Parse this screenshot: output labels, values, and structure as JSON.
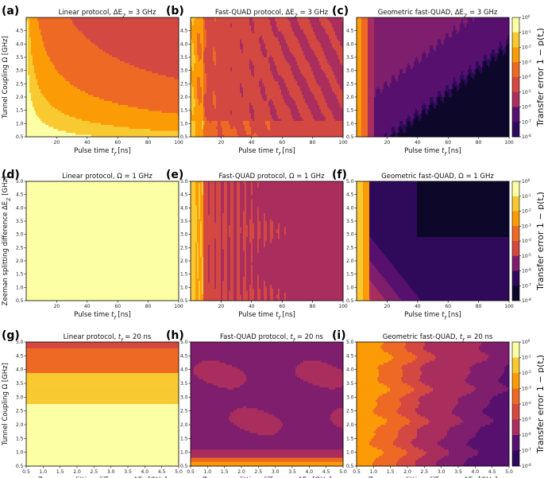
{
  "colors": {
    "levels": [
      "#0d0829",
      "#2f0a5b",
      "#57106e",
      "#7f1e6c",
      "#a92e5e",
      "#d44842",
      "#ee6a24",
      "#fb9b06",
      "#f8c931",
      "#fcffa4"
    ],
    "black": "#000000"
  },
  "chart_data": [
    {
      "id": "a",
      "type": "heatmap",
      "panel_label": "(a)",
      "title": "Linear protocol, ΔE_Z = 3 GHz",
      "xlabel": "Pulse time t_f [ns]",
      "ylabel": "Tunnel Coupling Ω [GHz]",
      "xlim": [
        0,
        100
      ],
      "ylim": [
        0.5,
        5.0
      ],
      "xticks": [
        "20",
        "40",
        "60",
        "80",
        "100"
      ],
      "yticks": [
        "0.5",
        "1.0",
        "1.5",
        "2.0",
        "2.5",
        "3.0",
        "3.5",
        "4.0",
        "4.5"
      ],
      "pattern": "linear_tf"
    },
    {
      "id": "b",
      "type": "heatmap",
      "panel_label": "(b)",
      "title": "Fast-QUAD protocol, ΔE_Z = 3 GHz",
      "xlabel": "Pulse time t_f [ns]",
      "xlim": [
        0,
        100
      ],
      "ylim": [
        0.5,
        5.0
      ],
      "xticks": [
        "20",
        "40",
        "60",
        "80",
        "100"
      ],
      "yticks": [
        "0.5",
        "1.0",
        "1.5",
        "2.0",
        "2.5",
        "3.0",
        "3.5",
        "4.0",
        "4.5"
      ],
      "pattern": "fastquad_tf_omega"
    },
    {
      "id": "c",
      "type": "heatmap",
      "panel_label": "(c)",
      "title": "Geometric fast-QUAD, ΔE_Z = 3 GHz",
      "xlabel": "Pulse time t_f [ns]",
      "xlim": [
        0,
        100
      ],
      "ylim": [
        0.5,
        5.0
      ],
      "xticks": [
        "20",
        "40",
        "60",
        "80",
        "100"
      ],
      "yticks": [
        "0.5",
        "1.0",
        "1.5",
        "2.0",
        "2.5",
        "3.0",
        "3.5",
        "4.0",
        "4.5"
      ],
      "pattern": "geometric_tf_omega",
      "colorbar": {
        "ticks": [
          "10^0",
          "10^-1",
          "10^-2",
          "10^-3",
          "10^-4",
          "10^-5",
          "10^-6",
          "10^-7",
          "10^-8"
        ],
        "label": "Transfer error 1 − p(t_f)"
      }
    },
    {
      "id": "d",
      "type": "heatmap",
      "panel_label": "(d)",
      "title": "Linear protocol, Ω = 1 GHz",
      "xlabel": "Pulse time t_f [ns]",
      "ylabel": "Zeeman splitting difference ΔE_Z [GHz]",
      "xlim": [
        0,
        100
      ],
      "ylim": [
        0.5,
        5.0
      ],
      "xticks": [
        "20",
        "40",
        "60",
        "80",
        "100"
      ],
      "yticks": [
        "0.5",
        "1.0",
        "1.5",
        "2.0",
        "2.5",
        "3.0",
        "3.5",
        "4.0",
        "4.5",
        "5.0"
      ],
      "pattern": "uniform"
    },
    {
      "id": "e",
      "type": "heatmap",
      "panel_label": "(e)",
      "title": "Fast-QUAD protocol, Ω = 1 GHz",
      "xlabel": "Pulse time t_f [ns]",
      "xlim": [
        0,
        100
      ],
      "ylim": [
        0.5,
        5.0
      ],
      "xticks": [
        "20",
        "40",
        "60",
        "80",
        "100"
      ],
      "yticks": [
        "0.5",
        "1.0",
        "1.5",
        "2.0",
        "2.5",
        "3.0",
        "3.5",
        "4.0",
        "4.5",
        "5.0"
      ],
      "pattern": "fastquad_tf_dez"
    },
    {
      "id": "f",
      "type": "heatmap",
      "panel_label": "(f)",
      "title": "Geometric fast-QUAD, Ω = 1 GHz",
      "xlabel": "Pulse time t_f [ns]",
      "xlim": [
        0,
        100
      ],
      "ylim": [
        0.5,
        5.0
      ],
      "xticks": [
        "20",
        "40",
        "60",
        "80",
        "100"
      ],
      "yticks": [
        "0.5",
        "1.0",
        "1.5",
        "2.0",
        "2.5",
        "3.0",
        "3.5",
        "4.0",
        "4.5",
        "5.0"
      ],
      "pattern": "geometric_tf_dez",
      "colorbar": {
        "ticks": [
          "10^0",
          "10^-1",
          "10^-2",
          "10^-3",
          "10^-4",
          "10^-5",
          "10^-6",
          "10^-7",
          "10^-8"
        ],
        "label": "Transfer error 1 − p(t_f)"
      }
    },
    {
      "id": "g",
      "type": "heatmap",
      "panel_label": "(g)",
      "title": "Linear protocol, t_f = 20 ns",
      "xlabel": "Zeeman splitting difference ΔE_Z [GHz]",
      "ylabel": "Tunnel Coupling Ω [GHz]",
      "xlim": [
        0.5,
        5.0
      ],
      "ylim": [
        0.5,
        5.0
      ],
      "xticks": [
        "0.5",
        "1.0",
        "1.5",
        "2.0",
        "2.5",
        "3.0",
        "3.5",
        "4.0",
        "4.5",
        "5.0"
      ],
      "yticks": [
        "0.5",
        "1.0",
        "1.5",
        "2.0",
        "2.5",
        "3.0",
        "3.5",
        "4.0",
        "4.5",
        "5.0"
      ],
      "pattern": "linear_bands"
    },
    {
      "id": "h",
      "type": "heatmap",
      "panel_label": "(h)",
      "title": "Fast-QUAD protocol, t_f = 20 ns",
      "xlabel": "Zeeman splitting difference ΔE_Z [GHz]",
      "xlim": [
        0.5,
        5.0
      ],
      "ylim": [
        0.5,
        5.0
      ],
      "xticks": [
        "0.5",
        "1.0",
        "1.5",
        "2.0",
        "2.5",
        "3.0",
        "3.5",
        "4.0",
        "4.5",
        "5.0"
      ],
      "yticks": [
        "0.5",
        "1.0",
        "1.5",
        "2.0",
        "2.5",
        "3.0",
        "3.5",
        "4.0",
        "4.5",
        "5.0"
      ],
      "pattern": "fastquad_dez_omega"
    },
    {
      "id": "i",
      "type": "heatmap",
      "panel_label": "(i)",
      "title": "Geometric fast-QUAD, t_f = 20 ns",
      "xlabel": "Zeeman splitting difference ΔE_Z [GHz]",
      "xlim": [
        0.5,
        5.0
      ],
      "ylim": [
        0.5,
        5.0
      ],
      "xticks": [
        "0.5",
        "1.0",
        "1.5",
        "2.0",
        "2.5",
        "3.0",
        "3.5",
        "4.0",
        "4.5",
        "5.0"
      ],
      "yticks": [
        "0.5",
        "1.0",
        "1.5",
        "2.0",
        "2.5",
        "3.0",
        "3.5",
        "4.0",
        "4.5",
        "5.0"
      ],
      "pattern": "geometric_dez_omega",
      "colorbar": {
        "ticks": [
          "10^0",
          "10^-1",
          "10^-2",
          "10^-3",
          "10^-4",
          "10^-5",
          "10^-6",
          "10^-7",
          "10^-8"
        ],
        "label": "Transfer error 1 − p(t_f)"
      }
    }
  ]
}
